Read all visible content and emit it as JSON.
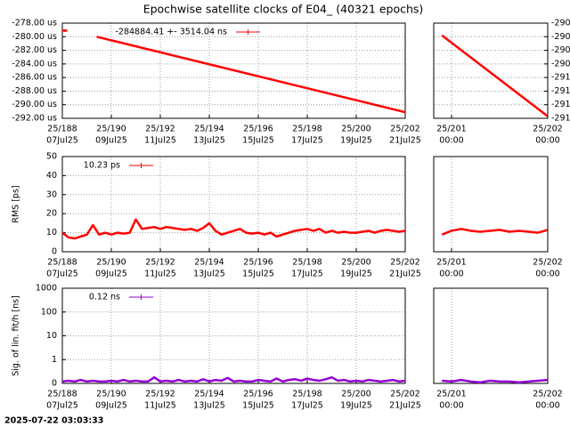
{
  "title": "Epochwise satellite clocks of E04_ (40321 epochs)",
  "timestamp": "2025-07-22 03:03:33",
  "chart_data": [
    {
      "type": "line",
      "yaxis": "left",
      "grid": true,
      "x": [
        188,
        188.2,
        189.0,
        189.4,
        202
      ],
      "series": [
        {
          "name": "-284884.41 +-   3514.04 ns",
          "color": "#ff0000",
          "values": [
            -279.1,
            -279.1,
            null,
            -280.0,
            -291.1
          ]
        }
      ],
      "xlim": [
        188,
        202
      ],
      "xticks": [
        {
          "value": 188,
          "label": "25/188"
        },
        {
          "value": 190,
          "label": "25/190"
        },
        {
          "value": 192,
          "label": "25/192"
        },
        {
          "value": 194,
          "label": "25/194"
        },
        {
          "value": 196,
          "label": "25/196"
        },
        {
          "value": 198,
          "label": "25/198"
        },
        {
          "value": 200,
          "label": "25/200"
        },
        {
          "value": 202,
          "label": "25/202"
        }
      ],
      "xtick_sublabels": [
        "07Jul25",
        "09Jul25",
        "11Jul25",
        "13Jul25",
        "15Jul25",
        "17Jul25",
        "19Jul25",
        "21Jul25"
      ],
      "ylim": [
        -292,
        -278
      ],
      "yticks": [
        {
          "value": -278,
          "label": "-278.00 us"
        },
        {
          "value": -280,
          "label": "-280.00 us"
        },
        {
          "value": -282,
          "label": "-282.00 us"
        },
        {
          "value": -284,
          "label": "-284.00 us"
        },
        {
          "value": -286,
          "label": "-286.00 us"
        },
        {
          "value": -288,
          "label": "-288.00 us"
        },
        {
          "value": -290,
          "label": "-290.00 us"
        },
        {
          "value": -292,
          "label": "-292.00 us"
        }
      ]
    },
    {
      "type": "line",
      "yaxis": "right",
      "grid": true,
      "x": [
        200.9,
        202
      ],
      "series": [
        {
          "color": "#ff0000",
          "values": [
            -289.98,
            -291.17
          ]
        }
      ],
      "xlim": [
        200.815,
        202
      ],
      "xticks": [
        {
          "value": 201,
          "label": "25/201"
        },
        {
          "value": 202,
          "label": "25/202"
        }
      ],
      "xtick_sublabels": [
        "00:00",
        "00:00"
      ],
      "ylim": [
        -291.2,
        -289.8
      ],
      "yticks": [
        {
          "value": -289.8,
          "label": "-290"
        },
        {
          "value": -290.0,
          "label": "-290"
        },
        {
          "value": -290.2,
          "label": "-290"
        },
        {
          "value": -290.4,
          "label": "-290"
        },
        {
          "value": -290.6,
          "label": "-291"
        },
        {
          "value": -290.8,
          "label": "-291"
        },
        {
          "value": -291.0,
          "label": "-291"
        },
        {
          "value": -291.2,
          "label": "-291"
        }
      ]
    },
    {
      "type": "line",
      "yaxis": "left",
      "grid": true,
      "ylabel": "RMS [ps]",
      "x": [
        188,
        188.25,
        188.5,
        188.75,
        189,
        189.25,
        189.5,
        189.75,
        190,
        190.25,
        190.5,
        190.75,
        191,
        191.25,
        191.5,
        191.75,
        192,
        192.25,
        192.5,
        192.75,
        193,
        193.25,
        193.5,
        193.75,
        194,
        194.25,
        194.5,
        194.75,
        195,
        195.25,
        195.5,
        195.75,
        196,
        196.25,
        196.5,
        196.75,
        197,
        197.25,
        197.5,
        197.75,
        198,
        198.25,
        198.5,
        198.75,
        199,
        199.25,
        199.5,
        199.75,
        200,
        200.25,
        200.5,
        200.75,
        201,
        201.25,
        201.5,
        201.75,
        202
      ],
      "series": [
        {
          "name": "10.23 ps",
          "color": "#ff0000",
          "values": [
            10,
            7.5,
            7,
            8,
            9,
            14,
            9,
            10,
            9,
            10,
            9.5,
            10,
            17,
            12,
            12.5,
            13,
            12,
            13,
            12.5,
            12,
            11.5,
            12,
            11,
            12.5,
            15,
            11,
            9,
            10,
            11,
            12,
            10,
            9.5,
            10,
            9,
            10,
            8,
            9,
            10,
            11,
            11.5,
            12,
            11,
            12,
            10,
            11,
            10,
            10.5,
            10,
            10,
            10.5,
            11,
            10,
            11,
            11.5,
            11,
            10.5,
            11
          ]
        }
      ],
      "xlim": [
        188,
        202
      ],
      "xticks": [
        {
          "value": 188,
          "label": "25/188"
        },
        {
          "value": 190,
          "label": "25/190"
        },
        {
          "value": 192,
          "label": "25/192"
        },
        {
          "value": 194,
          "label": "25/194"
        },
        {
          "value": 196,
          "label": "25/196"
        },
        {
          "value": 198,
          "label": "25/198"
        },
        {
          "value": 200,
          "label": "25/200"
        },
        {
          "value": 202,
          "label": "25/202"
        }
      ],
      "xtick_sublabels": [
        "07Jul25",
        "09Jul25",
        "11Jul25",
        "13Jul25",
        "15Jul25",
        "17Jul25",
        "19Jul25",
        "21Jul25"
      ],
      "ylim": [
        0,
        50
      ],
      "yticks": [
        0,
        10,
        20,
        30,
        40,
        50
      ]
    },
    {
      "type": "line",
      "yaxis": "none",
      "grid": true,
      "x": [
        200.9,
        201.0,
        201.1,
        201.2,
        201.3,
        201.4,
        201.5,
        201.6,
        201.7,
        201.8,
        201.9,
        202.0
      ],
      "series": [
        {
          "color": "#ff0000",
          "values": [
            9,
            11,
            12,
            11,
            10.5,
            11,
            11.5,
            10.5,
            11,
            10.5,
            10,
            11.5
          ]
        }
      ],
      "xlim": [
        200.815,
        202
      ],
      "xticks": [
        {
          "value": 201,
          "label": "25/201"
        },
        {
          "value": 202,
          "label": "25/202"
        }
      ],
      "xtick_sublabels": [
        "00:00",
        "00:00"
      ],
      "ylim": [
        0,
        50
      ]
    },
    {
      "type": "line",
      "yaxis": "left",
      "grid": true,
      "yscale": "log",
      "ylabel": "Sig. of lin. fit/h [ns]",
      "x": [
        188,
        188.25,
        188.5,
        188.75,
        189,
        189.25,
        189.5,
        189.75,
        190,
        190.25,
        190.5,
        190.75,
        191,
        191.25,
        191.5,
        191.75,
        192,
        192.25,
        192.5,
        192.75,
        193,
        193.25,
        193.5,
        193.75,
        194,
        194.25,
        194.5,
        194.75,
        195,
        195.25,
        195.5,
        195.75,
        196,
        196.25,
        196.5,
        196.75,
        197,
        197.25,
        197.5,
        197.75,
        198,
        198.25,
        198.5,
        198.75,
        199,
        199.25,
        199.5,
        199.75,
        200,
        200.25,
        200.5,
        200.75,
        201,
        201.25,
        201.5,
        201.75,
        202
      ],
      "series": [
        {
          "name": "0.12 ns",
          "color": "#9400d3",
          "values": [
            0.12,
            0.13,
            0.12,
            0.14,
            0.12,
            0.13,
            0.12,
            0.12,
            0.13,
            0.12,
            0.14,
            0.12,
            0.13,
            0.12,
            0.12,
            0.18,
            0.12,
            0.13,
            0.12,
            0.14,
            0.12,
            0.13,
            0.12,
            0.15,
            0.12,
            0.14,
            0.13,
            0.17,
            0.12,
            0.13,
            0.12,
            0.12,
            0.14,
            0.13,
            0.12,
            0.16,
            0.12,
            0.14,
            0.15,
            0.13,
            0.16,
            0.14,
            0.13,
            0.15,
            0.18,
            0.13,
            0.14,
            0.12,
            0.13,
            0.12,
            0.14,
            0.13,
            0.12,
            0.13,
            0.14,
            0.12,
            0.13
          ]
        }
      ],
      "xlim": [
        188,
        202
      ],
      "xticks": [
        {
          "value": 188,
          "label": "25/188"
        },
        {
          "value": 190,
          "label": "25/190"
        },
        {
          "value": 192,
          "label": "25/192"
        },
        {
          "value": 194,
          "label": "25/194"
        },
        {
          "value": 196,
          "label": "25/196"
        },
        {
          "value": 198,
          "label": "25/198"
        },
        {
          "value": 200,
          "label": "25/200"
        },
        {
          "value": 202,
          "label": "25/202"
        }
      ],
      "xtick_sublabels": [
        "07Jul25",
        "09Jul25",
        "11Jul25",
        "13Jul25",
        "15Jul25",
        "17Jul25",
        "19Jul25",
        "21Jul25"
      ],
      "ylim": [
        0.1,
        1000
      ],
      "yticks": [
        {
          "value": 0.1,
          "label": "0"
        },
        1,
        10,
        100,
        1000
      ]
    },
    {
      "type": "line",
      "yaxis": "none",
      "grid": true,
      "yscale": "log",
      "x": [
        200.9,
        201.0,
        201.1,
        201.2,
        201.3,
        201.4,
        201.5,
        201.6,
        201.7,
        201.8,
        201.9,
        202.0
      ],
      "series": [
        {
          "color": "#9400d3",
          "values": [
            0.13,
            0.12,
            0.14,
            0.12,
            0.11,
            0.13,
            0.12,
            0.12,
            0.11,
            0.12,
            0.13,
            0.14
          ]
        }
      ],
      "xlim": [
        200.815,
        202
      ],
      "xticks": [
        {
          "value": 201,
          "label": "25/201"
        },
        {
          "value": 202,
          "label": "25/202"
        }
      ],
      "xtick_sublabels": [
        "00:00",
        "00:00"
      ],
      "ylim": [
        0.1,
        1000
      ]
    }
  ]
}
